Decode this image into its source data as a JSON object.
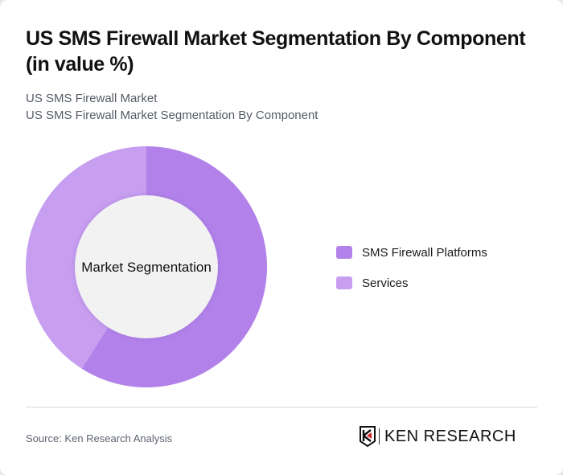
{
  "header": {
    "title": "US SMS Firewall Market Segmentation By Component (in value %)",
    "subtitle_1": "US SMS Firewall Market",
    "subtitle_2": "US SMS Firewall Market Segmentation By Component"
  },
  "donut": {
    "center_label": "Market Segmentation"
  },
  "legend": [
    {
      "label": "SMS Firewall Platforms",
      "color": "#b282ea"
    },
    {
      "label": "Services",
      "color": "#c79ef0"
    }
  ],
  "footer": {
    "source": "Source: Ken Research Analysis",
    "logo_text": "KEN RESEARCH"
  },
  "chart_data": {
    "type": "pie",
    "title": "US SMS Firewall Market Segmentation By Component (in value %)",
    "subtitle": "US SMS Firewall Market Segmentation By Component",
    "categories": [
      "SMS Firewall Platforms",
      "Services"
    ],
    "values": [
      59,
      41
    ],
    "colors": [
      "#b282ea",
      "#c79ef0"
    ],
    "center_label": "Market Segmentation",
    "donut": true,
    "legend_position": "right"
  }
}
